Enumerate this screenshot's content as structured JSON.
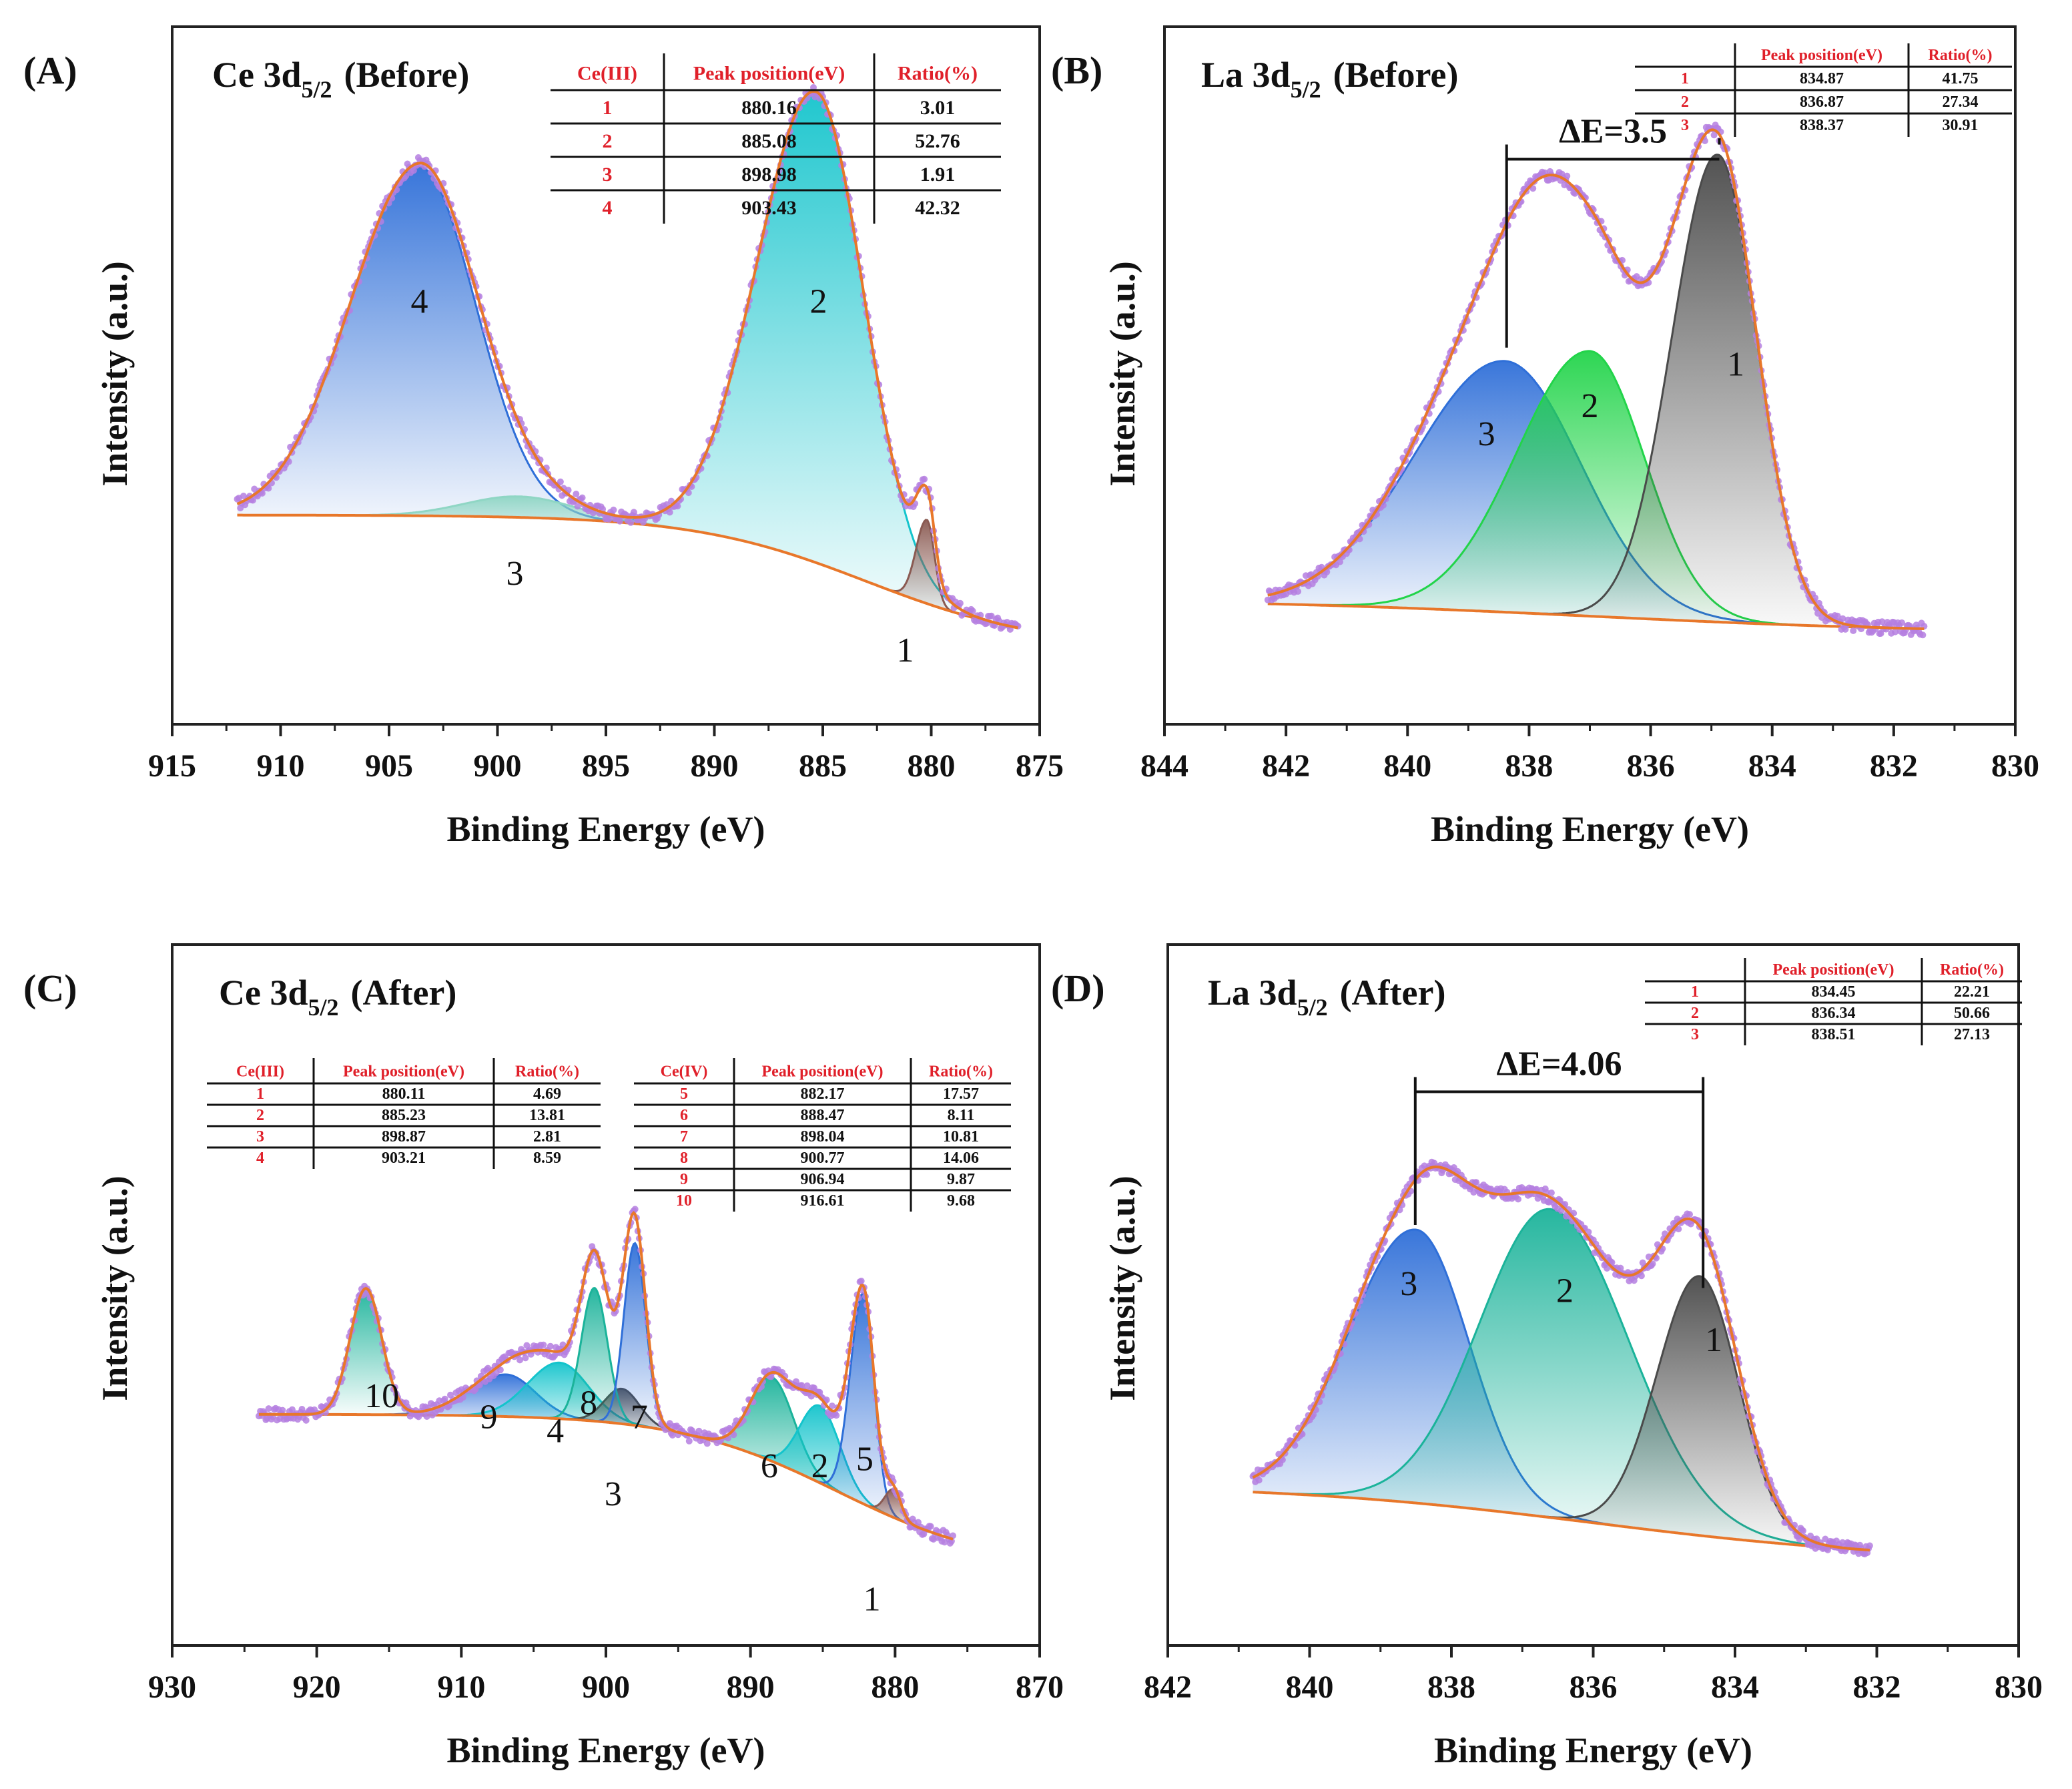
{
  "figure": {
    "colors": {
      "envelope": "#e8772a",
      "background": "#e8772a",
      "raw": "#b57fe0",
      "axis": "#222222",
      "table_accent": "#e0202a",
      "peak_blue": "#2f6fd8",
      "peak_cyan": "#14c4cc",
      "peak_teal": "#1bb39a",
      "peak_green": "#22d44a",
      "peak_dark": "#4a4a4a",
      "peak_brown": "#8a5a52",
      "peak_mint": "#8fd6c4"
    },
    "panels": [
      {
        "letter": "(A)",
        "title_main": "Ce 3d",
        "title_sub": "5/2",
        "title_rest": "(Before)",
        "xlabel": "Binding Energy (eV)",
        "ylabel": "Intensity (a.u.)",
        "chart_data": {
          "type": "line",
          "x_reversed": true,
          "xlim": [
            915,
            875
          ],
          "xticks": [
            915,
            910,
            905,
            900,
            895,
            890,
            885,
            880,
            875
          ],
          "xtick_labels": [
            "915",
            "910",
            "905",
            "900",
            "895",
            "890",
            "885",
            "880",
            "875"
          ],
          "ylim": [
            0,
            1
          ],
          "data_range": [
            912,
            876
          ],
          "background": {
            "start": 0.3,
            "end": 0.11,
            "center": 883,
            "width": 4
          },
          "peaks": [
            {
              "label": "4",
              "center": 903.6,
              "height": 0.5,
              "sigma_left": 3.2,
              "sigma_right": 2.6,
              "color": "#2f6fd8"
            },
            {
              "label": "2",
              "center": 885.3,
              "height": 0.675,
              "sigma_left": 2.7,
              "sigma_right": 2.2,
              "color": "#14c4cc"
            },
            {
              "label": "3",
              "center": 899.0,
              "height": 0.03,
              "sigma_left": 2.5,
              "sigma_right": 2.5,
              "color": "#8fd6c4"
            },
            {
              "label": "1",
              "center": 880.2,
              "height": 0.12,
              "sigma_left": 0.5,
              "sigma_right": 0.35,
              "color": "#8a5a52"
            }
          ],
          "peak_labels": [
            {
              "text": "4",
              "x": 903.6,
              "y": 0.59
            },
            {
              "text": "2",
              "x": 885.2,
              "y": 0.59
            },
            {
              "text": "3",
              "x": 899.2,
              "y": 0.2
            },
            {
              "text": "1",
              "x": 881.2,
              "y": 0.09
            }
          ],
          "marker": null
        },
        "tables": [
          {
            "headers": [
              "Ce(III)",
              "Peak position(eV)",
              "Ratio(%)"
            ],
            "rows": [
              [
                "1",
                "880.16",
                "3.01"
              ],
              [
                "2",
                "885.08",
                "52.76"
              ],
              [
                "3",
                "898.98",
                "1.91"
              ],
              [
                "4",
                "903.43",
                "42.32"
              ]
            ]
          }
        ]
      },
      {
        "letter": "(B)",
        "title_main": "La 3d",
        "title_sub": "5/2",
        "title_rest": "(Before)",
        "xlabel": "Binding Energy (eV)",
        "ylabel": "Intensity (a.u.)",
        "chart_data": {
          "type": "line",
          "x_reversed": true,
          "xlim": [
            844,
            830
          ],
          "xticks": [
            844,
            842,
            840,
            838,
            836,
            834,
            832,
            830
          ],
          "xtick_labels": [
            "844",
            "842",
            "840",
            "838",
            "836",
            "834",
            "832",
            "830"
          ],
          "ylim": [
            0,
            1
          ],
          "data_range": [
            842.3,
            831.5
          ],
          "background": {
            "start": 0.18,
            "end": 0.13,
            "center": 837,
            "width": 3
          },
          "peaks": [
            {
              "label": "3",
              "center": 838.4,
              "height": 0.36,
              "sigma_left": 1.5,
              "sigma_right": 1.25,
              "color": "#2f6fd8"
            },
            {
              "label": "2",
              "center": 837.0,
              "height": 0.38,
              "sigma_left": 1.2,
              "sigma_right": 0.9,
              "color": "#22d44a"
            },
            {
              "label": "1",
              "center": 834.9,
              "height": 0.67,
              "sigma_left": 0.75,
              "sigma_right": 0.65,
              "color": "#4a4a4a"
            }
          ],
          "peak_labels": [
            {
              "text": "3",
              "x": 838.7,
              "y": 0.4
            },
            {
              "text": "2",
              "x": 837.0,
              "y": 0.44
            },
            {
              "text": "1",
              "x": 834.6,
              "y": 0.5
            }
          ],
          "marker": {
            "label": "ΔE=3.5",
            "x1": 838.37,
            "x2": 834.87,
            "y_bar": 0.81,
            "y_bottom1": 0.54,
            "y_bottom2": 0.84
          }
        },
        "tables": [
          {
            "headers": [
              "",
              "Peak position(eV)",
              "Ratio(%)"
            ],
            "rows": [
              [
                "1",
                "834.87",
                "41.75"
              ],
              [
                "2",
                "836.87",
                "27.34"
              ],
              [
                "3",
                "838.37",
                "30.91"
              ]
            ]
          }
        ]
      },
      {
        "letter": "(C)",
        "title_main": "Ce 3d",
        "title_sub": "5/2",
        "title_rest": "(After)",
        "xlabel": "Binding Energy (eV)",
        "ylabel": "Intensity (a.u.)",
        "chart_data": {
          "type": "line",
          "x_reversed": true,
          "xlim": [
            930,
            870
          ],
          "xticks": [
            930,
            920,
            910,
            900,
            890,
            880,
            870
          ],
          "xtick_labels": [
            "930",
            "920",
            "910",
            "900",
            "890",
            "880",
            "870"
          ],
          "ylim": [
            0,
            1
          ],
          "data_range": [
            924,
            876
          ],
          "background": {
            "start": 0.33,
            "end": 0.11,
            "center": 884,
            "width": 5.5
          },
          "peaks": [
            {
              "label": "10",
              "center": 916.6,
              "height": 0.18,
              "sigma_left": 1.1,
              "sigma_right": 1.1,
              "color": "#1bb39a"
            },
            {
              "label": "9",
              "center": 906.9,
              "height": 0.06,
              "sigma_left": 2.6,
              "sigma_right": 2.0,
              "color": "#2f6fd8"
            },
            {
              "label": "4",
              "center": 903.2,
              "height": 0.08,
              "sigma_left": 2.2,
              "sigma_right": 2.0,
              "color": "#14c4cc"
            },
            {
              "label": "3",
              "center": 898.9,
              "height": 0.05,
              "sigma_left": 1.2,
              "sigma_right": 1.2,
              "color": "#4a4a4a"
            },
            {
              "label": "8",
              "center": 900.8,
              "height": 0.19,
              "sigma_left": 0.9,
              "sigma_right": 0.9,
              "color": "#1bb39a"
            },
            {
              "label": "7",
              "center": 898.0,
              "height": 0.26,
              "sigma_left": 0.75,
              "sigma_right": 0.75,
              "color": "#2f6fd8"
            },
            {
              "label": "6",
              "center": 888.5,
              "height": 0.12,
              "sigma_left": 1.5,
              "sigma_right": 1.5,
              "color": "#1bb39a"
            },
            {
              "label": "2",
              "center": 885.2,
              "height": 0.11,
              "sigma_left": 1.4,
              "sigma_right": 1.4,
              "color": "#14c4cc"
            },
            {
              "label": "5",
              "center": 882.2,
              "height": 0.3,
              "sigma_left": 0.9,
              "sigma_right": 0.75,
              "color": "#2f6fd8"
            },
            {
              "label": "1",
              "center": 880.1,
              "height": 0.04,
              "sigma_left": 0.6,
              "sigma_right": 0.5,
              "color": "#8a5a52"
            }
          ],
          "peak_labels": [
            {
              "text": "10",
              "x": 915.5,
              "y": 0.34
            },
            {
              "text": "9",
              "x": 908.1,
              "y": 0.31
            },
            {
              "text": "4",
              "x": 903.5,
              "y": 0.29
            },
            {
              "text": "8",
              "x": 901.2,
              "y": 0.33
            },
            {
              "text": "7",
              "x": 897.7,
              "y": 0.31
            },
            {
              "text": "3",
              "x": 899.5,
              "y": 0.2
            },
            {
              "text": "6",
              "x": 888.7,
              "y": 0.24
            },
            {
              "text": "2",
              "x": 885.2,
              "y": 0.24
            },
            {
              "text": "5",
              "x": 882.1,
              "y": 0.25
            },
            {
              "text": "1",
              "x": 881.6,
              "y": 0.05
            }
          ],
          "marker": null
        },
        "tables": [
          {
            "headers": [
              "Ce(III)",
              "Peak position(eV)",
              "Ratio(%)"
            ],
            "rows": [
              [
                "1",
                "880.11",
                "4.69"
              ],
              [
                "2",
                "885.23",
                "13.81"
              ],
              [
                "3",
                "898.87",
                "2.81"
              ],
              [
                "4",
                "903.21",
                "8.59"
              ]
            ]
          },
          {
            "headers": [
              "Ce(IV)",
              "Peak position(eV)",
              "Ratio(%)"
            ],
            "rows": [
              [
                "5",
                "882.17",
                "17.57"
              ],
              [
                "6",
                "888.47",
                "8.11"
              ],
              [
                "7",
                "898.04",
                "10.81"
              ],
              [
                "8",
                "900.77",
                "14.06"
              ],
              [
                "9",
                "906.94",
                "9.87"
              ],
              [
                "10",
                "916.61",
                "9.68"
              ]
            ]
          }
        ]
      },
      {
        "letter": "(D)",
        "title_main": "La 3d",
        "title_sub": "5/2",
        "title_rest": "(After)",
        "xlabel": "Binding Energy (eV)",
        "ylabel": "Intensity (a.u.)",
        "chart_data": {
          "type": "line",
          "x_reversed": true,
          "xlim": [
            842,
            830
          ],
          "xticks": [
            842,
            840,
            838,
            836,
            834,
            832,
            830
          ],
          "xtick_labels": [
            "842",
            "840",
            "838",
            "836",
            "834",
            "832",
            "830"
          ],
          "ylim": [
            0,
            1
          ],
          "data_range": [
            840.8,
            832.1
          ],
          "background": {
            "start": 0.23,
            "end": 0.12,
            "center": 836,
            "width": 2.2
          },
          "peaks": [
            {
              "label": "3",
              "center": 838.5,
              "height": 0.39,
              "sigma_left": 0.95,
              "sigma_right": 0.75,
              "color": "#2f6fd8"
            },
            {
              "label": "2",
              "center": 836.6,
              "height": 0.44,
              "sigma_left": 1.0,
              "sigma_right": 1.1,
              "color": "#1bb39a"
            },
            {
              "label": "1",
              "center": 834.5,
              "height": 0.37,
              "sigma_left": 0.6,
              "sigma_right": 0.55,
              "color": "#4a4a4a"
            }
          ],
          "peak_labels": [
            {
              "text": "3",
              "x": 838.6,
              "y": 0.5
            },
            {
              "text": "2",
              "x": 836.4,
              "y": 0.49
            },
            {
              "text": "1",
              "x": 834.3,
              "y": 0.42
            }
          ],
          "marker": {
            "label": "ΔE=4.06",
            "x1": 838.51,
            "x2": 834.45,
            "y_bar": 0.79,
            "y_bottom1": 0.6,
            "y_bottom2": 0.51
          }
        },
        "tables": [
          {
            "headers": [
              "",
              "Peak position(eV)",
              "Ratio(%)"
            ],
            "rows": [
              [
                "1",
                "834.45",
                "22.21"
              ],
              [
                "2",
                "836.34",
                "50.66"
              ],
              [
                "3",
                "838.51",
                "27.13"
              ]
            ]
          }
        ]
      }
    ]
  }
}
